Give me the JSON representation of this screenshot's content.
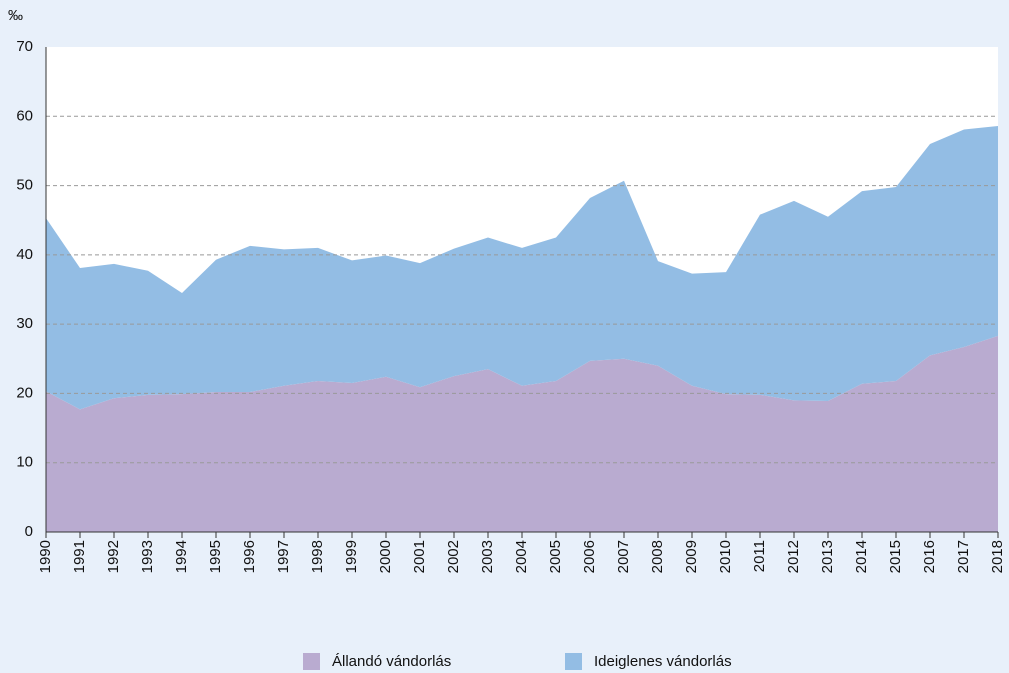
{
  "chart_data": {
    "type": "stacked_area",
    "y_label": "‰",
    "categories": [
      "1990",
      "1991",
      "1992",
      "1993",
      "1994",
      "1995",
      "1996",
      "1997",
      "1998",
      "1999",
      "2000",
      "2001",
      "2002",
      "2003",
      "2004",
      "2005",
      "2006",
      "2007",
      "2008",
      "2009",
      "2010",
      "2011",
      "2012",
      "2013",
      "2014",
      "2015",
      "2016",
      "2017",
      "2018"
    ],
    "series": [
      {
        "name": "Állandó vándorlás",
        "color": "#b9abd0",
        "values": [
          20.3,
          17.7,
          19.3,
          19.8,
          19.9,
          20.2,
          20.2,
          21.1,
          21.8,
          21.5,
          22.4,
          20.9,
          22.5,
          23.5,
          21.1,
          21.8,
          24.7,
          25.0,
          24.0,
          21.1,
          19.9,
          19.8,
          19.0,
          18.9,
          21.4,
          21.8,
          25.5,
          26.7,
          28.3
        ]
      },
      {
        "name": "Ideiglenes vándorlás",
        "color": "#93bde4",
        "values": [
          25.0,
          20.4,
          19.4,
          17.9,
          14.6,
          19.1,
          21.1,
          19.7,
          19.2,
          17.7,
          17.5,
          17.9,
          18.4,
          19.0,
          19.9,
          20.7,
          23.5,
          25.7,
          15.1,
          16.2,
          17.6,
          26.0,
          28.8,
          26.6,
          27.8,
          28.0,
          30.5,
          31.4,
          30.3
        ]
      }
    ],
    "ylim": [
      0,
      70
    ],
    "yticks": [
      0,
      10,
      20,
      30,
      40,
      50,
      60,
      70
    ],
    "grid": true
  }
}
